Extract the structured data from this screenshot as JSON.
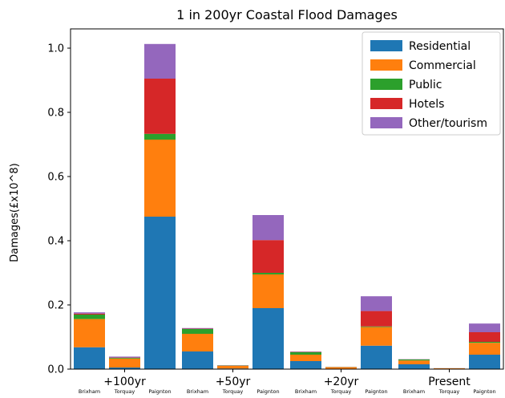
{
  "chart_data": {
    "type": "bar",
    "stacked": true,
    "title": "1 in 200yr Coastal Flood Damages",
    "xlabel": "",
    "ylabel": "Damages(£x10^8)",
    "ylim": [
      0,
      1.06
    ],
    "yticks": [
      "0.0",
      "0.2",
      "0.4",
      "0.6",
      "0.8",
      "1.0"
    ],
    "legend_position": "top-right",
    "groups": [
      "+100yr",
      "+50yr",
      "+20yr",
      "Present"
    ],
    "locations": [
      "Brixham",
      "Torquay",
      "Paignton"
    ],
    "series": [
      {
        "name": "Residential",
        "color": "#1f77b4",
        "values": [
          0.068,
          0.005,
          0.475,
          0.055,
          0.002,
          0.19,
          0.025,
          0.001,
          0.073,
          0.015,
          0.0005,
          0.045
        ]
      },
      {
        "name": "Commercial",
        "color": "#ff7f0e",
        "values": [
          0.088,
          0.028,
          0.24,
          0.055,
          0.008,
          0.105,
          0.02,
          0.005,
          0.058,
          0.012,
          0.002,
          0.037
        ]
      },
      {
        "name": "Public",
        "color": "#2ca02c",
        "values": [
          0.014,
          0.002,
          0.018,
          0.015,
          0.001,
          0.005,
          0.008,
          0.0005,
          0.002,
          0.003,
          0.0002,
          0.003
        ]
      },
      {
        "name": "Hotels",
        "color": "#d62728",
        "values": [
          0.003,
          0.001,
          0.172,
          0.001,
          0.0005,
          0.102,
          0.001,
          0.0003,
          0.048,
          0.0005,
          0.0002,
          0.03
        ]
      },
      {
        "name": "Other/tourism",
        "color": "#9467bd",
        "values": [
          0.004,
          0.003,
          0.108,
          0.002,
          0.0005,
          0.078,
          0.001,
          0.0002,
          0.046,
          0.0005,
          0.0001,
          0.027
        ]
      }
    ]
  }
}
